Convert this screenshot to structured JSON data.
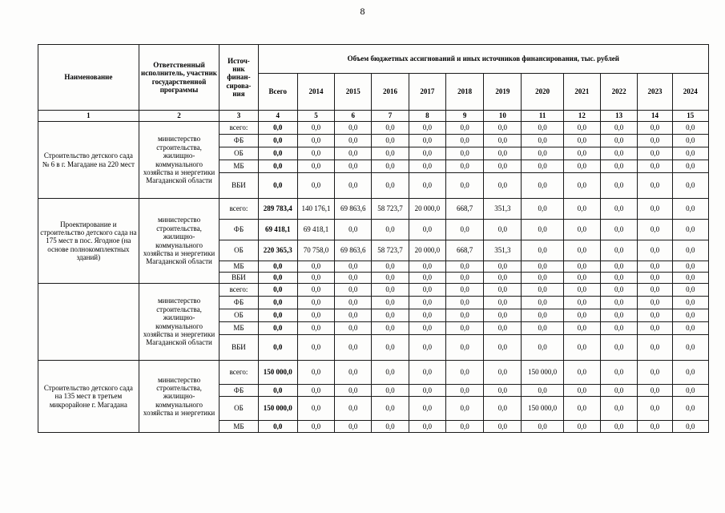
{
  "page_number": "8",
  "table": {
    "header": {
      "name": "Наименование",
      "executor": "Ответственный исполнитель, участник государственной программы",
      "source": "Источ-\nник\nфинан-\nсирова-\nния",
      "volume_title": "Объем бюджетных ассигнований и иных источников финансирования, тыс. рублей",
      "years": [
        "Всего",
        "2014",
        "2015",
        "2016",
        "2017",
        "2018",
        "2019",
        "2020",
        "2021",
        "2022",
        "2023",
        "2024"
      ],
      "numbers": [
        "1",
        "2",
        "3",
        "4",
        "5",
        "6",
        "7",
        "8",
        "9",
        "10",
        "11",
        "12",
        "13",
        "14",
        "15"
      ]
    },
    "groups": [
      {
        "name": "Строительство детского сада № 6 в г. Магадане на 220 мест",
        "executor": "министерство строительства, жилищно-коммунального хозяйства и энергетики Магаданской области",
        "rows": [
          {
            "source": "всего:",
            "values": [
              "0,0",
              "0,0",
              "0,0",
              "0,0",
              "0,0",
              "0,0",
              "0,0",
              "0,0",
              "0,0",
              "0,0",
              "0,0",
              "0,0"
            ]
          },
          {
            "source": "ФБ",
            "values": [
              "0,0",
              "0,0",
              "0,0",
              "0,0",
              "0,0",
              "0,0",
              "0,0",
              "0,0",
              "0,0",
              "0,0",
              "0,0",
              "0,0"
            ]
          },
          {
            "source": "ОБ",
            "values": [
              "0,0",
              "0,0",
              "0,0",
              "0,0",
              "0,0",
              "0,0",
              "0,0",
              "0,0",
              "0,0",
              "0,0",
              "0,0",
              "0,0"
            ]
          },
          {
            "source": "МБ",
            "values": [
              "0,0",
              "0,0",
              "0,0",
              "0,0",
              "0,0",
              "0,0",
              "0,0",
              "0,0",
              "0,0",
              "0,0",
              "0,0",
              "0,0"
            ]
          },
          {
            "source": "ВБИ",
            "values": [
              "0,0",
              "0,0",
              "0,0",
              "0,0",
              "0,0",
              "0,0",
              "0,0",
              "0,0",
              "0,0",
              "0,0",
              "0,0",
              "0,0"
            ]
          }
        ]
      },
      {
        "name": "Проектирование и строительство детского сада на 175 мест в пос. Ягодное (на основе полнокомплектных зданий)",
        "executor": "министерство строительства, жилищно-коммунального хозяйства и энергетики Магаданской области",
        "rows": [
          {
            "source": "всего:",
            "values": [
              "289 783,4",
              "140 176,1",
              "69 863,6",
              "58 723,7",
              "20 000,0",
              "668,7",
              "351,3",
              "0,0",
              "0,0",
              "0,0",
              "0,0",
              "0,0"
            ]
          },
          {
            "source": "ФБ",
            "values": [
              "69 418,1",
              "69 418,1",
              "0,0",
              "0,0",
              "0,0",
              "0,0",
              "0,0",
              "0,0",
              "0,0",
              "0,0",
              "0,0",
              "0,0"
            ]
          },
          {
            "source": "ОБ",
            "values": [
              "220 365,3",
              "70 758,0",
              "69 863,6",
              "58 723,7",
              "20 000,0",
              "668,7",
              "351,3",
              "0,0",
              "0,0",
              "0,0",
              "0,0",
              "0,0"
            ]
          },
          {
            "source": "МБ",
            "values": [
              "0,0",
              "0,0",
              "0,0",
              "0,0",
              "0,0",
              "0,0",
              "0,0",
              "0,0",
              "0,0",
              "0,0",
              "0,0",
              "0,0"
            ]
          },
          {
            "source": "ВБИ",
            "values": [
              "0,0",
              "0,0",
              "0,0",
              "0,0",
              "0,0",
              "0,0",
              "0,0",
              "0,0",
              "0,0",
              "0,0",
              "0,0",
              "0,0"
            ]
          }
        ]
      },
      {
        "name": "",
        "executor": "министерство строительства, жилищно-коммунального хозяйства и энергетики Магаданской области",
        "rows": [
          {
            "source": "всего:",
            "values": [
              "0,0",
              "0,0",
              "0,0",
              "0,0",
              "0,0",
              "0,0",
              "0,0",
              "0,0",
              "0,0",
              "0,0",
              "0,0",
              "0,0"
            ]
          },
          {
            "source": "ФБ",
            "values": [
              "0,0",
              "0,0",
              "0,0",
              "0,0",
              "0,0",
              "0,0",
              "0,0",
              "0,0",
              "0,0",
              "0,0",
              "0,0",
              "0,0"
            ]
          },
          {
            "source": "ОБ",
            "values": [
              "0,0",
              "0,0",
              "0,0",
              "0,0",
              "0,0",
              "0,0",
              "0,0",
              "0,0",
              "0,0",
              "0,0",
              "0,0",
              "0,0"
            ]
          },
          {
            "source": "МБ",
            "values": [
              "0,0",
              "0,0",
              "0,0",
              "0,0",
              "0,0",
              "0,0",
              "0,0",
              "0,0",
              "0,0",
              "0,0",
              "0,0",
              "0,0"
            ]
          },
          {
            "source": "ВБИ",
            "values": [
              "0,0",
              "0,0",
              "0,0",
              "0,0",
              "0,0",
              "0,0",
              "0,0",
              "0,0",
              "0,0",
              "0,0",
              "0,0",
              "0,0"
            ]
          }
        ]
      },
      {
        "name": "Строительство детского сада на 135 мест в третьем микрорайоне г. Магадана",
        "executor": "министерство строительства, жилищно-коммунального хозяйства и энергетики",
        "rows": [
          {
            "source": "всего:",
            "values": [
              "150 000,0",
              "0,0",
              "0,0",
              "0,0",
              "0,0",
              "0,0",
              "0,0",
              "150 000,0",
              "0,0",
              "0,0",
              "0,0",
              "0,0"
            ]
          },
          {
            "source": "ФБ",
            "values": [
              "0,0",
              "0,0",
              "0,0",
              "0,0",
              "0,0",
              "0,0",
              "0,0",
              "0,0",
              "0,0",
              "0,0",
              "0,0",
              "0,0"
            ]
          },
          {
            "source": "ОБ",
            "values": [
              "150 000,0",
              "0,0",
              "0,0",
              "0,0",
              "0,0",
              "0,0",
              "0,0",
              "150 000,0",
              "0,0",
              "0,0",
              "0,0",
              "0,0"
            ]
          },
          {
            "source": "МБ",
            "values": [
              "0,0",
              "0,0",
              "0,0",
              "0,0",
              "0,0",
              "0,0",
              "0,0",
              "0,0",
              "0,0",
              "0,0",
              "0,0",
              "0,0"
            ]
          }
        ]
      }
    ]
  }
}
